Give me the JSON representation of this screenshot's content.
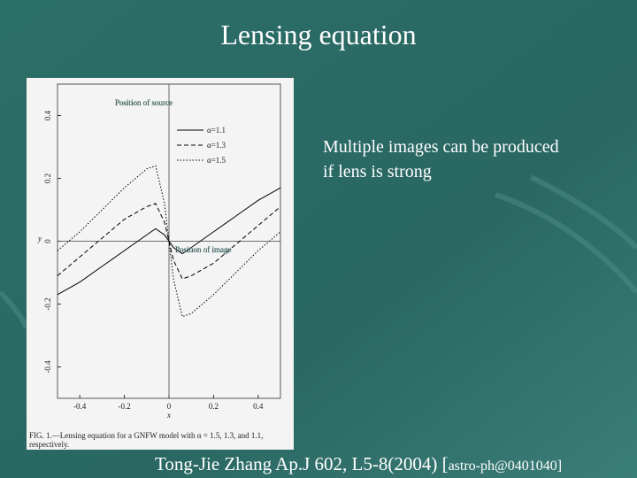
{
  "title": "Lensing equation",
  "body": [
    "Multiple images can be produced",
    "if lens is strong"
  ],
  "citation": {
    "main": "Tong-Jie Zhang Ap.J 602, L5-8(2004) [",
    "ref": "astro-ph@0401040]"
  },
  "figure": {
    "annotations": [
      "Position of source",
      "Position of image"
    ],
    "caption": [
      "FIG. 1.—Lensing equation for a GNFW model with α = 1.5, 1.3, and 1.1,",
      "respectively."
    ],
    "chart_data": {
      "type": "line",
      "xlabel": "x",
      "ylabel": "y",
      "x": [
        -0.5,
        -0.4,
        -0.3,
        -0.2,
        -0.1,
        -0.06,
        -0.02,
        0,
        0.02,
        0.06,
        0.1,
        0.2,
        0.3,
        0.4,
        0.5
      ],
      "series": [
        {
          "name": "α=1.1",
          "color": "#000000",
          "dash": "solid",
          "values": [
            -0.17,
            -0.13,
            -0.08,
            -0.03,
            0.02,
            0.04,
            0.02,
            0,
            -0.02,
            -0.04,
            -0.02,
            0.03,
            0.08,
            0.13,
            0.17
          ]
        },
        {
          "name": "α=1.3",
          "color": "#000000",
          "dash": "dashed",
          "values": [
            -0.11,
            -0.05,
            0.01,
            0.07,
            0.11,
            0.12,
            0.06,
            0,
            -0.06,
            -0.12,
            -0.11,
            -0.07,
            -0.01,
            0.05,
            0.11
          ]
        },
        {
          "name": "α=1.5",
          "color": "#000000",
          "dash": "dotted",
          "values": [
            -0.03,
            0.03,
            0.1,
            0.17,
            0.23,
            0.24,
            0.12,
            0,
            -0.12,
            -0.24,
            -0.23,
            -0.17,
            -0.1,
            -0.03,
            0.03
          ]
        }
      ],
      "xlim": [
        -0.5,
        0.5
      ],
      "ylim": [
        -0.5,
        0.5
      ],
      "xticks": [
        -0.4,
        -0.2,
        0,
        0.2,
        0.4
      ],
      "yticks": [
        -0.4,
        -0.2,
        0,
        0.2,
        0.4
      ],
      "legend": "upper right"
    }
  }
}
